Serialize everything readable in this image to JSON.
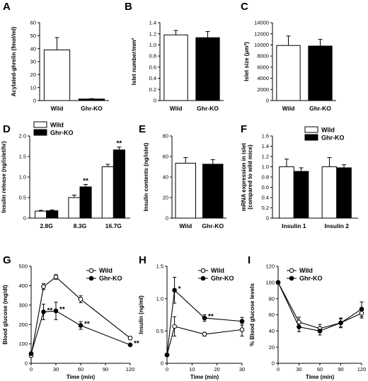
{
  "chart_data": [
    {
      "id": "A",
      "type": "bar",
      "letter": "A",
      "ylabel": "Acylated-ghrelin (fmol/ml)",
      "ylim": [
        0,
        60
      ],
      "yticks": [
        0,
        10,
        20,
        30,
        40,
        50,
        60
      ],
      "categories": [
        "Wild",
        "Ghr-KO"
      ],
      "values": [
        39,
        1.2
      ],
      "errors": [
        9.5,
        0.3
      ],
      "fills": [
        "#ffffff",
        "#000000"
      ]
    },
    {
      "id": "B",
      "type": "bar",
      "letter": "B",
      "ylabel": "Islet number/mm²",
      "ylim": [
        0,
        1.4
      ],
      "yticks": [
        "0",
        "0.2",
        "0.4",
        "0.6",
        "0.8",
        "1.0",
        "1.2",
        "1.4"
      ],
      "categories": [
        "Wild",
        "Ghr-KO"
      ],
      "values": [
        1.18,
        1.13
      ],
      "errors": [
        0.08,
        0.11
      ],
      "fills": [
        "#ffffff",
        "#000000"
      ]
    },
    {
      "id": "C",
      "type": "bar",
      "letter": "C",
      "ylabel": "Islet size (μm²)",
      "ylim": [
        0,
        14000
      ],
      "yticks": [
        0,
        2000,
        4000,
        6000,
        8000,
        10000,
        12000,
        14000
      ],
      "categories": [
        "Wild",
        "Ghr-KO"
      ],
      "values": [
        9900,
        9800
      ],
      "errors": [
        1700,
        1200
      ],
      "fills": [
        "#ffffff",
        "#000000"
      ]
    },
    {
      "id": "D",
      "type": "bar",
      "letter": "D",
      "ylabel": "Insulin release (ng/islet/hr)",
      "ylim": [
        0,
        2.0
      ],
      "yticks": [
        "0",
        "0.5",
        "1.0",
        "1.5",
        "2.0"
      ],
      "categories": [
        "2.8G",
        "8.3G",
        "16.7G"
      ],
      "series": [
        {
          "name": "Wild",
          "values": [
            0.17,
            0.5,
            1.25
          ],
          "errors": [
            0.02,
            0.06,
            0.06
          ],
          "fill": "#ffffff"
        },
        {
          "name": "Ghr-KO",
          "values": [
            0.18,
            0.76,
            1.66
          ],
          "errors": [
            0.02,
            0.06,
            0.07
          ],
          "fill": "#000000",
          "stars": [
            "",
            "**",
            "**"
          ]
        }
      ],
      "legend": "top-left"
    },
    {
      "id": "E",
      "type": "bar",
      "letter": "E",
      "ylabel": "Insulin contents (ng/islet)",
      "ylim": [
        0,
        80
      ],
      "yticks": [
        0,
        20,
        40,
        60,
        80
      ],
      "categories": [
        "Wild",
        "Ghr-KO"
      ],
      "values": [
        53.5,
        52.5
      ],
      "errors": [
        5.5,
        4.5
      ],
      "fills": [
        "#ffffff",
        "#000000"
      ]
    },
    {
      "id": "F",
      "type": "bar",
      "letter": "F",
      "ylabel": [
        "mRNA expression in islet",
        "(compared to wild mice)"
      ],
      "ylim": [
        0,
        1.6
      ],
      "yticks": [
        "0",
        "0.2",
        "0.4",
        "0.6",
        "0.8",
        "1.0",
        "1.2",
        "1.4",
        "1.6"
      ],
      "categories": [
        "Insulin 1",
        "Insulin 2"
      ],
      "series": [
        {
          "name": "Wild",
          "values": [
            1.0,
            1.0
          ],
          "errors": [
            0.15,
            0.18
          ],
          "fill": "#ffffff"
        },
        {
          "name": "Ghr-KO",
          "values": [
            0.91,
            0.98
          ],
          "errors": [
            0.07,
            0.06
          ],
          "fill": "#000000"
        }
      ],
      "legend": "top-right"
    },
    {
      "id": "G",
      "type": "line",
      "letter": "G",
      "ylabel": "Blood glucose (mg/dl)",
      "xlabel": "Time (min)",
      "xlim": [
        0,
        120
      ],
      "xticks": [
        0,
        30,
        60,
        90,
        120
      ],
      "ylim": [
        0,
        500
      ],
      "yticks": [
        0,
        100,
        200,
        300,
        400,
        500
      ],
      "series": [
        {
          "name": "Wild",
          "marker": "open",
          "x": [
            0,
            15,
            30,
            60,
            120
          ],
          "y": [
            40,
            395,
            445,
            330,
            130
          ],
          "errors": [
            5,
            15,
            12,
            18,
            8
          ]
        },
        {
          "name": "Ghr-KO",
          "marker": "filled",
          "x": [
            0,
            15,
            30,
            60,
            120
          ],
          "y": [
            50,
            265,
            270,
            195,
            95
          ],
          "errors": [
            5,
            40,
            45,
            20,
            5
          ],
          "stars": [
            "",
            "**",
            "**",
            "**",
            "**"
          ]
        }
      ],
      "legend": "top-right"
    },
    {
      "id": "H",
      "type": "line",
      "letter": "H",
      "ylabel": "Insulin (ng/ml)",
      "xlabel": "Time (min)",
      "xlim": [
        0,
        30
      ],
      "xticks": [
        0,
        10,
        20,
        30
      ],
      "ylim": [
        0,
        1.5
      ],
      "yticks": [
        "0",
        "0.5",
        "1.0",
        "1.5"
      ],
      "series": [
        {
          "name": "Wild",
          "marker": "open",
          "x": [
            0,
            3,
            15,
            30
          ],
          "y": [
            0.13,
            0.57,
            0.45,
            0.52
          ],
          "errors": [
            0.02,
            0.15,
            0.03,
            0.1
          ]
        },
        {
          "name": "Ghr-KO",
          "marker": "filled",
          "x": [
            0,
            3,
            15,
            30
          ],
          "y": [
            0.13,
            1.13,
            0.7,
            0.65
          ],
          "errors": [
            0.02,
            0.2,
            0.05,
            0.06
          ],
          "stars": [
            "",
            "*",
            "**",
            ""
          ]
        }
      ],
      "legend": "top-right"
    },
    {
      "id": "I",
      "type": "line",
      "letter": "I",
      "ylabel": "% Blood glucose levels",
      "xlabel": "Time (min)",
      "xlim": [
        0,
        120
      ],
      "xticks": [
        0,
        30,
        60,
        90,
        120
      ],
      "ylim": [
        0,
        120
      ],
      "yticks": [
        0,
        20,
        40,
        60,
        80,
        100,
        120
      ],
      "series": [
        {
          "name": "Wild",
          "marker": "open",
          "x": [
            0,
            30,
            60,
            90,
            120
          ],
          "y": [
            100,
            51,
            43,
            50,
            62
          ],
          "errors": [
            0,
            6,
            5,
            5,
            6
          ]
        },
        {
          "name": "Ghr-KO",
          "marker": "filled",
          "x": [
            0,
            30,
            60,
            90,
            120
          ],
          "y": [
            100,
            45,
            40,
            50,
            67
          ],
          "errors": [
            0,
            6,
            5,
            6,
            9
          ]
        }
      ],
      "legend": "top-left"
    }
  ]
}
